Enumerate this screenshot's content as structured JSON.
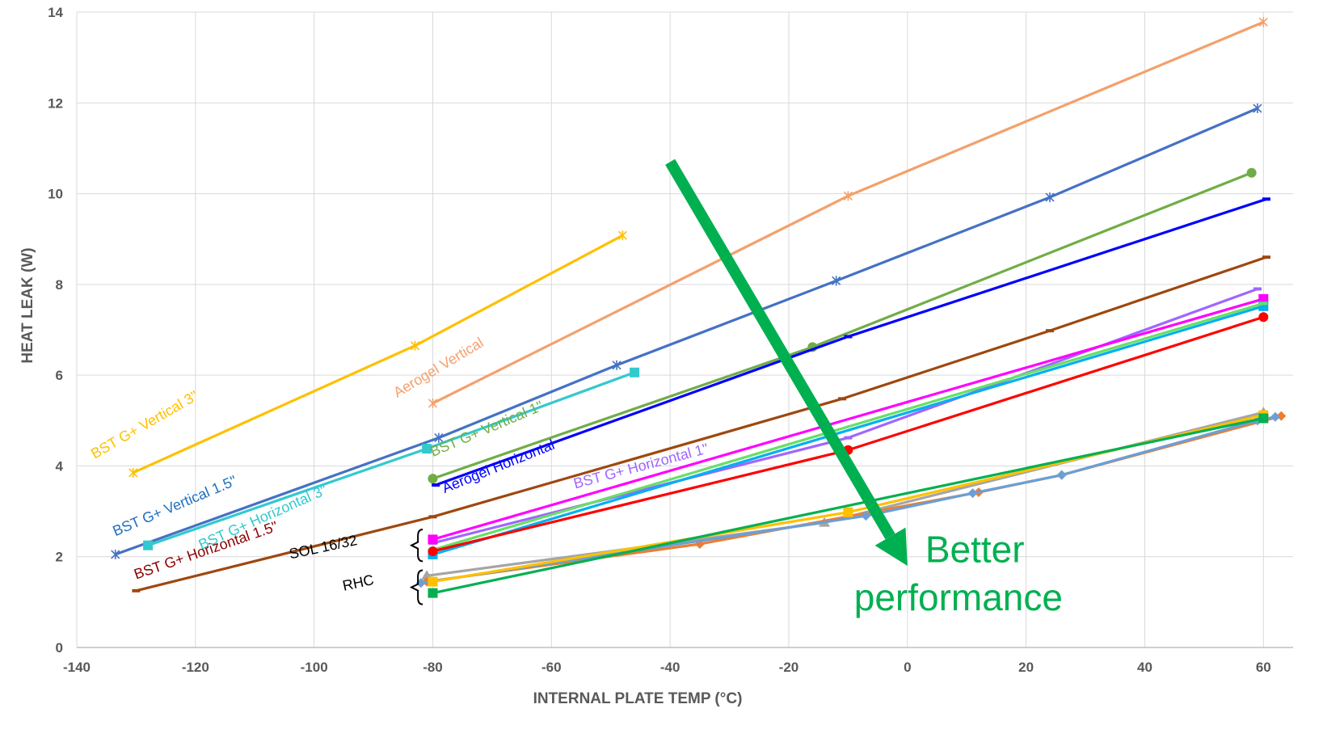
{
  "chart_data": {
    "type": "line",
    "title": "",
    "xlabel": "INTERNAL PLATE TEMP (°C)",
    "ylabel": "HEAT LEAK (W)",
    "xlim": [
      -140,
      65
    ],
    "ylim": [
      0,
      14
    ],
    "x_ticks": [
      -140,
      -120,
      -100,
      -80,
      -60,
      -40,
      -20,
      0,
      20,
      40,
      60
    ],
    "y_ticks": [
      0,
      2,
      4,
      6,
      8,
      10,
      12,
      14
    ],
    "grid": true,
    "legend": "none",
    "series": [
      {
        "label": "BST G+ Vertical 3\"",
        "color": "#ffc000",
        "marker": "x",
        "points": [
          [
            -130.5,
            3.85
          ],
          [
            -83,
            6.65
          ],
          [
            -48,
            9.08
          ]
        ],
        "label_pos": [
          -137,
          4.15
        ],
        "label_angle": -30
      },
      {
        "label": "Aerogel Vertical",
        "color": "#f4a06b",
        "marker": "x",
        "points": [
          [
            -80,
            5.38
          ],
          [
            -10,
            9.95
          ],
          [
            60,
            13.78
          ]
        ],
        "label_pos": [
          -86,
          5.5
        ],
        "label_angle": -31
      },
      {
        "label": "BST G+ Vertical 1.5\"",
        "color": "#4472c4",
        "marker": "x",
        "label_color": "#1f6fbf",
        "points": [
          [
            -133.5,
            2.05
          ],
          [
            -79,
            4.62
          ],
          [
            -49,
            6.22
          ],
          [
            -12,
            8.08
          ],
          [
            24,
            9.92
          ],
          [
            59,
            11.88
          ]
        ],
        "label_pos": [
          -133.5,
          2.45
        ],
        "label_angle": -23
      },
      {
        "label": "BST G+ Vertical 1\"",
        "color": "#70ad47",
        "marker": "circle",
        "points": [
          [
            -80,
            3.72
          ],
          [
            -16,
            6.62
          ],
          [
            58,
            10.46
          ]
        ],
        "label_pos": [
          -80,
          4.2
        ],
        "label_angle": -23
      },
      {
        "label": "Aerogel Horizontal",
        "color": "#0000ff",
        "marker": "dash",
        "points": [
          [
            -79.5,
            3.58
          ],
          [
            -10,
            6.85
          ],
          [
            60.5,
            9.88
          ]
        ],
        "label_pos": [
          -78,
          3.4
        ],
        "label_angle": -22
      },
      {
        "label": "BST G+ Horizontal 3\"",
        "color": "#33c9cf",
        "marker": "square",
        "points": [
          [
            -128,
            2.25
          ],
          [
            -81,
            4.38
          ],
          [
            -46,
            6.06
          ]
        ],
        "label_pos": [
          -119,
          2.15
        ],
        "label_angle": -24
      },
      {
        "label": "BST G+ Horizontal 1.5\"",
        "color": "#9e480e",
        "marker": "dash",
        "label_color": "#8b0000",
        "points": [
          [
            -130,
            1.25
          ],
          [
            -80,
            2.88
          ],
          [
            -11,
            5.48
          ],
          [
            24,
            6.98
          ],
          [
            60.5,
            8.6
          ]
        ],
        "label_pos": [
          -130,
          1.5
        ],
        "label_angle": -19
      },
      {
        "label": "BST G+ Horizontal 1\"",
        "color": "#a066ff",
        "marker": "dash",
        "points": [
          [
            -80,
            2.3
          ],
          [
            -10,
            4.62
          ],
          [
            59,
            7.9
          ]
        ],
        "label_pos": [
          -56,
          3.5
        ],
        "label_angle": -15
      },
      {
        "label": "SOL 16/32",
        "color": "#ff00ff",
        "marker": "square",
        "points": [
          [
            -80,
            2.38
          ],
          [
            60,
            7.68
          ]
        ]
      },
      {
        "label": "",
        "color": "#00b0f0",
        "marker": "square",
        "points": [
          [
            -80,
            2.05
          ],
          [
            60,
            7.52
          ]
        ]
      },
      {
        "label": "",
        "color": "#66e066",
        "marker": "dash",
        "points": [
          [
            -80,
            2.15
          ],
          [
            60,
            7.58
          ]
        ]
      },
      {
        "label": "",
        "color": "#ff0000",
        "marker": "circle",
        "points": [
          [
            -80,
            2.12
          ],
          [
            -10,
            4.35
          ],
          [
            60,
            7.28
          ]
        ]
      },
      {
        "label": "RHC",
        "color": "#a5a5a5",
        "marker": "triangle",
        "points": [
          [
            -81,
            1.58
          ],
          [
            -14,
            2.75
          ],
          [
            60,
            5.18
          ]
        ]
      },
      {
        "label": "",
        "color": "#ed7d31",
        "marker": "diamond",
        "points": [
          [
            -81,
            1.45
          ],
          [
            -35,
            2.28
          ],
          [
            12,
            3.42
          ],
          [
            26,
            3.8
          ],
          [
            63,
            5.1
          ]
        ]
      },
      {
        "label": "",
        "color": "#6a9fd6",
        "marker": "diamond",
        "points": [
          [
            -82,
            1.42
          ],
          [
            -7,
            2.9
          ],
          [
            11,
            3.4
          ],
          [
            26,
            3.8
          ],
          [
            59,
            5.0
          ],
          [
            62,
            5.08
          ]
        ]
      },
      {
        "label": "",
        "color": "#ffc000",
        "marker": "square",
        "points": [
          [
            -80,
            1.45
          ],
          [
            -10,
            2.98
          ],
          [
            60,
            5.12
          ]
        ]
      },
      {
        "label": "",
        "color": "#00b050",
        "marker": "square",
        "points": [
          [
            -80,
            1.2
          ],
          [
            60,
            5.05
          ]
        ]
      }
    ],
    "annotations": [
      {
        "text": "SOL 16/32",
        "pos": [
          -104,
          1.95
        ],
        "angle": -12
      },
      {
        "text": "RHC",
        "pos": [
          -95,
          1.25
        ],
        "angle": -12
      },
      {
        "text": "Better",
        "pos": [
          3,
          1.88
        ]
      },
      {
        "text": "performance",
        "pos": [
          -9,
          0.82
        ]
      }
    ],
    "arrow": {
      "from": [
        -40,
        10.7
      ],
      "to": [
        0,
        1.8
      ],
      "color": "#00b050"
    }
  }
}
